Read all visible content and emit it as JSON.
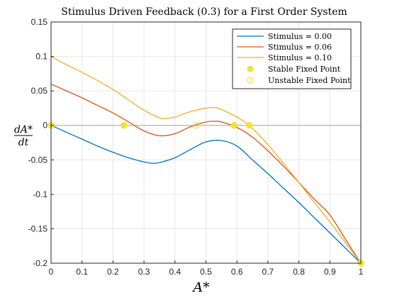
{
  "chart_data": {
    "type": "line",
    "title": "Stimulus Driven Feedback (0.3) for a First Order System",
    "xlabel": "A*",
    "ylabel_numerator": "dA*",
    "ylabel_denominator": "dt",
    "xlim": [
      0,
      1
    ],
    "ylim": [
      -0.2,
      0.15
    ],
    "xticks": [
      "0",
      "0.1",
      "0.2",
      "0.3",
      "0.4",
      "0.5",
      "0.6",
      "0.7",
      "0.8",
      "0.9",
      "1"
    ],
    "yticks": [
      "0.15",
      "0.1",
      "0.05",
      "0",
      "-0.05",
      "-0.1",
      "-0.15",
      "-0.2"
    ],
    "grid": true,
    "legend_position": "top-right",
    "zero_line": true,
    "series": [
      {
        "name": "Stimulus = 0.00",
        "color": "#0072bd",
        "x": [
          0,
          0.05,
          0.1,
          0.15,
          0.2,
          0.25,
          0.3,
          0.33,
          0.35,
          0.4,
          0.45,
          0.5,
          0.55,
          0.6,
          0.65,
          0.7,
          0.75,
          0.8,
          0.85,
          0.9,
          0.95,
          1.0
        ],
        "y": [
          0,
          -0.01,
          -0.02,
          -0.03,
          -0.039,
          -0.047,
          -0.053,
          -0.055,
          -0.054,
          -0.047,
          -0.035,
          -0.024,
          -0.022,
          -0.03,
          -0.05,
          -0.07,
          -0.091,
          -0.112,
          -0.134,
          -0.156,
          -0.178,
          -0.2
        ]
      },
      {
        "name": "Stimulus = 0.06",
        "color": "#d95319",
        "x": [
          0,
          0.05,
          0.1,
          0.15,
          0.2,
          0.25,
          0.3,
          0.35,
          0.4,
          0.45,
          0.5,
          0.53,
          0.55,
          0.6,
          0.65,
          0.7,
          0.75,
          0.8,
          0.85,
          0.9,
          0.95,
          1.0
        ],
        "y": [
          0.06,
          0.05,
          0.04,
          0.029,
          0.018,
          0.005,
          -0.008,
          -0.015,
          -0.012,
          -0.002,
          0.005,
          0.006,
          0.005,
          -0.003,
          -0.017,
          -0.037,
          -0.059,
          -0.083,
          -0.107,
          -0.13,
          -0.165,
          -0.2
        ]
      },
      {
        "name": "Stimulus = 0.10",
        "color": "#edb120",
        "x": [
          0,
          0.05,
          0.1,
          0.15,
          0.2,
          0.25,
          0.3,
          0.35,
          0.37,
          0.4,
          0.45,
          0.5,
          0.53,
          0.55,
          0.6,
          0.64,
          0.7,
          0.75,
          0.8,
          0.85,
          0.9,
          0.95,
          1.0
        ],
        "y": [
          0.1,
          0.088,
          0.077,
          0.065,
          0.052,
          0.037,
          0.022,
          0.011,
          0.01,
          0.012,
          0.02,
          0.025,
          0.026,
          0.023,
          0.012,
          0.0,
          -0.028,
          -0.055,
          -0.083,
          -0.112,
          -0.14,
          -0.17,
          -0.2
        ]
      }
    ],
    "stable_fixed_points": {
      "name": "Stable Fixed Point",
      "color": "#f2e232",
      "x": [
        0,
        0.235,
        0.59,
        0.64,
        1.0
      ],
      "y": [
        0,
        0,
        0,
        0,
        -0.2
      ]
    },
    "unstable_fixed_points": {
      "name": "Unstable Fixed Point",
      "color": "#f2e232",
      "x": [
        0.468
      ],
      "y": [
        0
      ]
    }
  }
}
